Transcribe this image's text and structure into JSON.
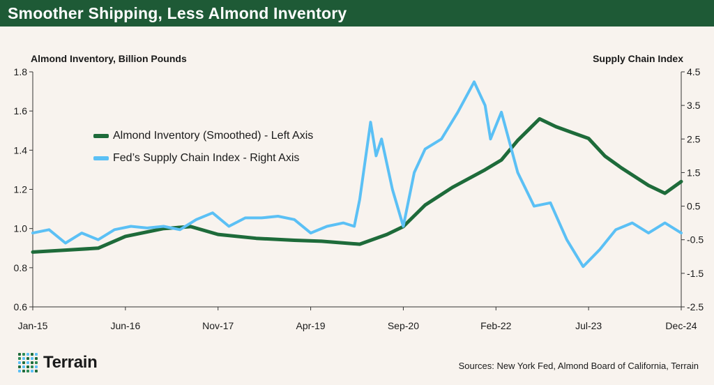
{
  "header": {
    "title": "Smoother Shipping, Less Almond Inventory"
  },
  "footer": {
    "logo_text": "Terrain",
    "sources": "Sources: New York Fed, Almond Board of California, Terrain"
  },
  "colors": {
    "header_bg": "#1e5a36",
    "almond_line": "#1e6b3a",
    "supply_line": "#5bc0f5",
    "background": "#f8f3ee"
  },
  "chart_data": {
    "type": "line",
    "left_axis": {
      "title": "Almond Inventory, Billion Pounds",
      "ylim": [
        0.6,
        1.8
      ],
      "ticks": [
        "0.6",
        "0.8",
        "1.0",
        "1.2",
        "1.4",
        "1.6",
        "1.8"
      ]
    },
    "right_axis": {
      "title": "Supply Chain Index",
      "ylim": [
        -2.5,
        4.5
      ],
      "ticks": [
        "-2.5",
        "-1.5",
        "-0.5",
        "0.5",
        "1.5",
        "2.5",
        "3.5",
        "4.5"
      ]
    },
    "x_ticks": [
      "Jan-15",
      "Jun-16",
      "Nov-17",
      "Apr-19",
      "Sep-20",
      "Feb-22",
      "Jul-23",
      "Dec-24"
    ],
    "x_range": [
      "2015-01",
      "2024-12"
    ],
    "legend_position": "upper-left",
    "grid": false,
    "series": [
      {
        "name": "Almond Inventory (Smoothed) - Left Axis",
        "axis": "left",
        "color": "#1e6b3a",
        "x": [
          "2015-01",
          "2015-07",
          "2016-01",
          "2016-06",
          "2017-01",
          "2017-06",
          "2017-11",
          "2018-06",
          "2019-01",
          "2019-06",
          "2020-01",
          "2020-06",
          "2020-09",
          "2021-01",
          "2021-06",
          "2021-12",
          "2022-03",
          "2022-06",
          "2022-10",
          "2023-01",
          "2023-04",
          "2023-07",
          "2023-10",
          "2024-01",
          "2024-06",
          "2024-09",
          "2024-12"
        ],
        "values": [
          0.88,
          0.89,
          0.9,
          0.96,
          1.0,
          1.01,
          0.97,
          0.95,
          0.94,
          0.935,
          0.92,
          0.97,
          1.01,
          1.12,
          1.21,
          1.3,
          1.35,
          1.45,
          1.56,
          1.52,
          1.49,
          1.46,
          1.37,
          1.31,
          1.22,
          1.18,
          1.24
        ]
      },
      {
        "name": "Fed’s Supply Chain Index - Right Axis",
        "axis": "right",
        "color": "#5bc0f5",
        "x": [
          "2015-01",
          "2015-04",
          "2015-07",
          "2015-10",
          "2016-01",
          "2016-04",
          "2016-07",
          "2016-10",
          "2017-01",
          "2017-04",
          "2017-07",
          "2017-10",
          "2018-01",
          "2018-04",
          "2018-07",
          "2018-10",
          "2019-01",
          "2019-04",
          "2019-07",
          "2019-10",
          "2019-12",
          "2020-01",
          "2020-03",
          "2020-04",
          "2020-05",
          "2020-07",
          "2020-09",
          "2020-11",
          "2021-01",
          "2021-04",
          "2021-07",
          "2021-10",
          "2021-12",
          "2022-01",
          "2022-03",
          "2022-06",
          "2022-09",
          "2022-12",
          "2023-03",
          "2023-06",
          "2023-09",
          "2023-12",
          "2024-03",
          "2024-06",
          "2024-09",
          "2024-12"
        ],
        "values": [
          -0.3,
          -0.2,
          -0.6,
          -0.3,
          -0.5,
          -0.2,
          -0.1,
          -0.15,
          -0.1,
          -0.2,
          0.1,
          0.3,
          -0.1,
          0.15,
          0.15,
          0.2,
          0.1,
          -0.3,
          -0.1,
          0.0,
          -0.1,
          0.7,
          3.0,
          2.0,
          2.5,
          1.0,
          -0.1,
          1.5,
          2.2,
          2.5,
          3.3,
          4.2,
          3.5,
          2.5,
          3.3,
          1.5,
          0.5,
          0.6,
          -0.5,
          -1.3,
          -0.8,
          -0.2,
          0.0,
          -0.3,
          0.0,
          -0.3
        ]
      }
    ]
  }
}
